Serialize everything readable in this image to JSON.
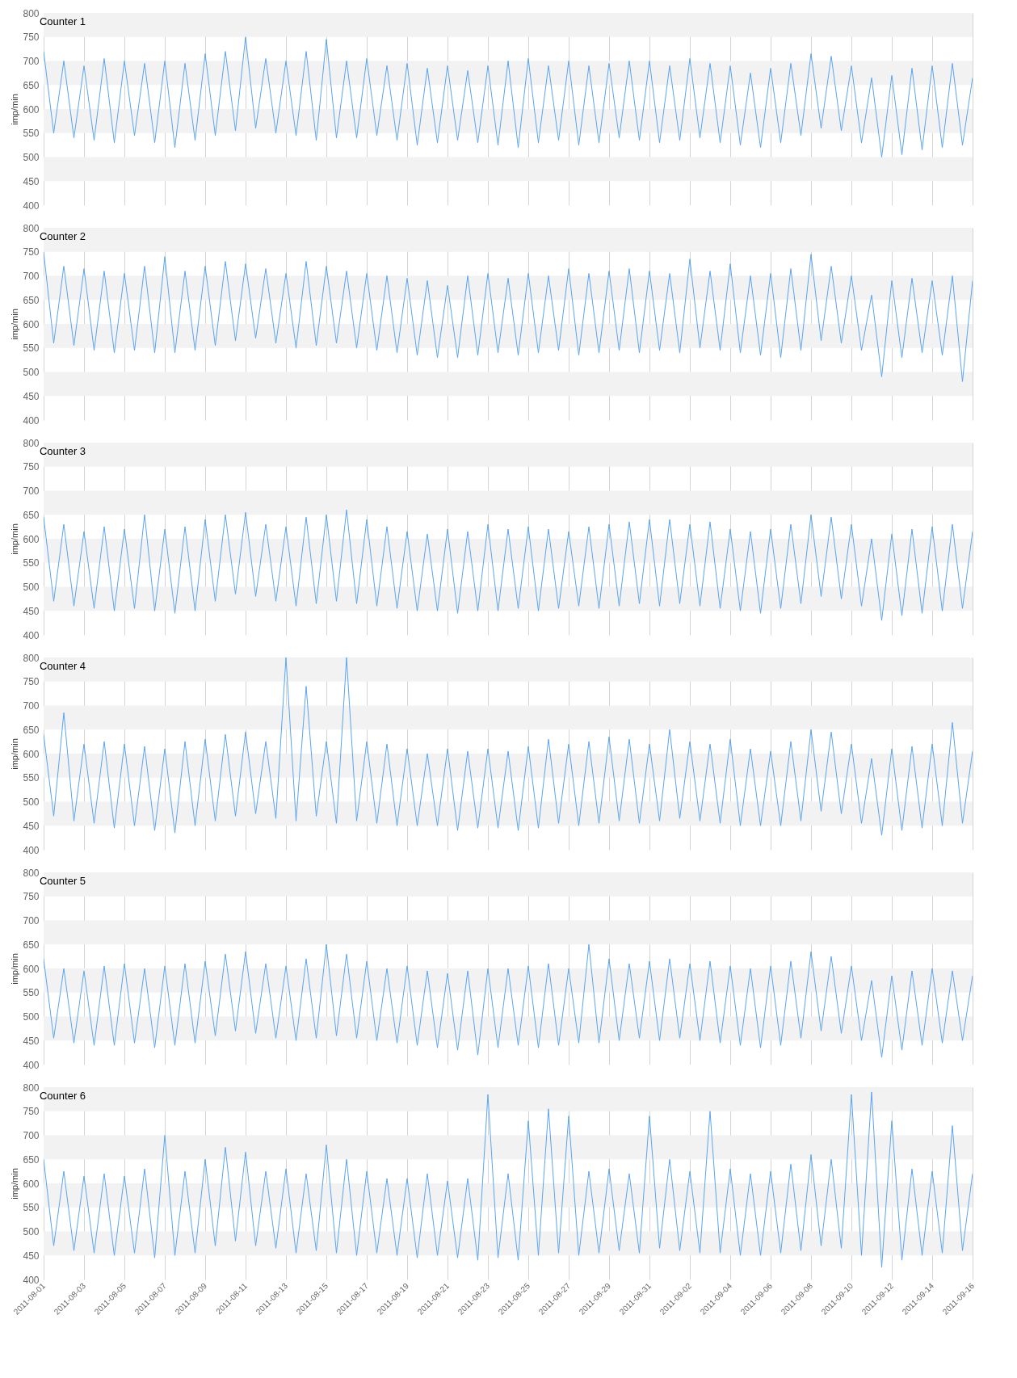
{
  "chart_data": [
    {
      "type": "line",
      "title": "Counter 1",
      "ylabel": "imp/min",
      "color": "#5aa5f0",
      "ylim": [
        400,
        800
      ],
      "yticks": [
        400,
        450,
        500,
        550,
        600,
        650,
        700,
        750,
        800
      ],
      "xlim": [
        "2011-08-01",
        "2011-09-16"
      ],
      "xticks": [
        "2011-08-01",
        "2011-08-03",
        "2011-08-05",
        "2011-08-07",
        "2011-08-09",
        "2011-08-11",
        "2011-08-13",
        "2011-08-15",
        "2011-08-17",
        "2011-08-19",
        "2011-08-21",
        "2011-08-23",
        "2011-08-25",
        "2011-08-27",
        "2011-08-29",
        "2011-08-31",
        "2011-09-02",
        "2011-09-04",
        "2011-09-06",
        "2011-09-08",
        "2011-09-10",
        "2011-09-12",
        "2011-09-14",
        "2011-09-16"
      ],
      "grid": "x",
      "tick_labels": "y",
      "bands": [
        {
          "axis": "y",
          "from": 450,
          "to": 500,
          "color": "#f2f2f2"
        },
        {
          "axis": "y",
          "from": 550,
          "to": 600,
          "color": "#f2f2f2"
        },
        {
          "axis": "y",
          "from": 650,
          "to": 700,
          "color": "#f2f2f2"
        },
        {
          "axis": "y",
          "from": 750,
          "to": 800,
          "color": "#f2f2f2"
        }
      ],
      "x": [
        "2011-08-01T00:00",
        "2011-08-01T12:00",
        "2011-08-02T00:00",
        "2011-08-02T12:00",
        "2011-08-03T00:00",
        "2011-08-03T12:00",
        "2011-08-04T00:00",
        "2011-08-04T12:00",
        "2011-08-05T00:00",
        "2011-08-05T12:00",
        "2011-08-06T00:00",
        "2011-08-06T12:00",
        "2011-08-07T00:00",
        "2011-08-07T12:00",
        "2011-08-08T00:00",
        "2011-08-08T12:00",
        "2011-08-09T00:00",
        "2011-08-09T12:00",
        "2011-08-10T00:00",
        "2011-08-10T12:00",
        "2011-08-11T00:00",
        "2011-08-11T12:00",
        "2011-08-12T00:00",
        "2011-08-12T12:00",
        "2011-08-13T00:00",
        "2011-08-13T12:00",
        "2011-08-14T00:00",
        "2011-08-14T12:00",
        "2011-08-15T00:00",
        "2011-08-15T12:00",
        "2011-08-16T00:00",
        "2011-08-16T12:00",
        "2011-08-17T00:00",
        "2011-08-17T12:00",
        "2011-08-18T00:00",
        "2011-08-18T12:00",
        "2011-08-19T00:00",
        "2011-08-19T12:00",
        "2011-08-20T00:00",
        "2011-08-20T12:00",
        "2011-08-21T00:00",
        "2011-08-21T12:00",
        "2011-08-22T00:00",
        "2011-08-22T12:00",
        "2011-08-23T00:00",
        "2011-08-23T12:00",
        "2011-08-24T00:00",
        "2011-08-24T12:00",
        "2011-08-25T00:00",
        "2011-08-25T12:00",
        "2011-08-26T00:00",
        "2011-08-26T12:00",
        "2011-08-27T00:00",
        "2011-08-27T12:00",
        "2011-08-28T00:00",
        "2011-08-28T12:00",
        "2011-08-29T00:00",
        "2011-08-29T12:00",
        "2011-08-30T00:00",
        "2011-08-30T12:00",
        "2011-08-31T00:00",
        "2011-08-31T12:00",
        "2011-09-01T00:00",
        "2011-09-01T12:00",
        "2011-09-02T00:00",
        "2011-09-02T12:00",
        "2011-09-03T00:00",
        "2011-09-03T12:00",
        "2011-09-04T00:00",
        "2011-09-04T12:00",
        "2011-09-05T00:00",
        "2011-09-05T12:00",
        "2011-09-06T00:00",
        "2011-09-06T12:00",
        "2011-09-07T00:00",
        "2011-09-07T12:00",
        "2011-09-08T00:00",
        "2011-09-08T12:00",
        "2011-09-09T00:00",
        "2011-09-09T12:00",
        "2011-09-10T00:00",
        "2011-09-10T12:00",
        "2011-09-11T00:00",
        "2011-09-11T12:00",
        "2011-09-12T00:00",
        "2011-09-12T12:00",
        "2011-09-13T00:00",
        "2011-09-13T12:00",
        "2011-09-14T00:00",
        "2011-09-14T12:00",
        "2011-09-15T00:00",
        "2011-09-15T12:00",
        "2011-09-16T00:00"
      ],
      "values": [
        720,
        550,
        700,
        540,
        690,
        535,
        705,
        530,
        700,
        545,
        695,
        530,
        700,
        520,
        695,
        535,
        715,
        545,
        720,
        555,
        750,
        560,
        705,
        550,
        700,
        545,
        720,
        535,
        745,
        540,
        700,
        540,
        705,
        545,
        690,
        535,
        695,
        525,
        685,
        530,
        690,
        535,
        680,
        530,
        690,
        525,
        700,
        520,
        705,
        530,
        690,
        535,
        700,
        525,
        690,
        530,
        695,
        540,
        700,
        535,
        700,
        530,
        690,
        535,
        705,
        540,
        695,
        530,
        690,
        525,
        675,
        520,
        685,
        530,
        695,
        545,
        715,
        560,
        710,
        555,
        690,
        530,
        665,
        500,
        670,
        505,
        685,
        515,
        690,
        520,
        695,
        525,
        665
      ]
    },
    {
      "type": "line",
      "title": "Counter 2",
      "ylabel": "imp/min",
      "color": "#5aa5f0",
      "ylim": [
        400,
        800
      ],
      "yticks": [
        400,
        450,
        500,
        550,
        600,
        650,
        700,
        750,
        800
      ],
      "xlim": [
        "2011-08-01",
        "2011-09-16"
      ],
      "xticks": [
        "2011-08-01",
        "2011-08-03",
        "2011-08-05",
        "2011-08-07",
        "2011-08-09",
        "2011-08-11",
        "2011-08-13",
        "2011-08-15",
        "2011-08-17",
        "2011-08-19",
        "2011-08-21",
        "2011-08-23",
        "2011-08-25",
        "2011-08-27",
        "2011-08-29",
        "2011-08-31",
        "2011-09-02",
        "2011-09-04",
        "2011-09-06",
        "2011-09-08",
        "2011-09-10",
        "2011-09-12",
        "2011-09-14",
        "2011-09-16"
      ],
      "grid": "x",
      "tick_labels": "y",
      "bands": [
        {
          "axis": "y",
          "from": 450,
          "to": 500,
          "color": "#f2f2f2"
        },
        {
          "axis": "y",
          "from": 550,
          "to": 600,
          "color": "#f2f2f2"
        },
        {
          "axis": "y",
          "from": 650,
          "to": 700,
          "color": "#f2f2f2"
        },
        {
          "axis": "y",
          "from": 750,
          "to": 800,
          "color": "#f2f2f2"
        }
      ],
      "x": [
        "2011-08-01T00:00",
        "2011-08-01T12:00",
        "2011-08-02T00:00",
        "2011-08-02T12:00",
        "2011-08-03T00:00",
        "2011-08-03T12:00",
        "2011-08-04T00:00",
        "2011-08-04T12:00",
        "2011-08-05T00:00",
        "2011-08-05T12:00",
        "2011-08-06T00:00",
        "2011-08-06T12:00",
        "2011-08-07T00:00",
        "2011-08-07T12:00",
        "2011-08-08T00:00",
        "2011-08-08T12:00",
        "2011-08-09T00:00",
        "2011-08-09T12:00",
        "2011-08-10T00:00",
        "2011-08-10T12:00",
        "2011-08-11T00:00",
        "2011-08-11T12:00",
        "2011-08-12T00:00",
        "2011-08-12T12:00",
        "2011-08-13T00:00",
        "2011-08-13T12:00",
        "2011-08-14T00:00",
        "2011-08-14T12:00",
        "2011-08-15T00:00",
        "2011-08-15T12:00",
        "2011-08-16T00:00",
        "2011-08-16T12:00",
        "2011-08-17T00:00",
        "2011-08-17T12:00",
        "2011-08-18T00:00",
        "2011-08-18T12:00",
        "2011-08-19T00:00",
        "2011-08-19T12:00",
        "2011-08-20T00:00",
        "2011-08-20T12:00",
        "2011-08-21T00:00",
        "2011-08-21T12:00",
        "2011-08-22T00:00",
        "2011-08-22T12:00",
        "2011-08-23T00:00",
        "2011-08-23T12:00",
        "2011-08-24T00:00",
        "2011-08-24T12:00",
        "2011-08-25T00:00",
        "2011-08-25T12:00",
        "2011-08-26T00:00",
        "2011-08-26T12:00",
        "2011-08-27T00:00",
        "2011-08-27T12:00",
        "2011-08-28T00:00",
        "2011-08-28T12:00",
        "2011-08-29T00:00",
        "2011-08-29T12:00",
        "2011-08-30T00:00",
        "2011-08-30T12:00",
        "2011-08-31T00:00",
        "2011-08-31T12:00",
        "2011-09-01T00:00",
        "2011-09-01T12:00",
        "2011-09-02T00:00",
        "2011-09-02T12:00",
        "2011-09-03T00:00",
        "2011-09-03T12:00",
        "2011-09-04T00:00",
        "2011-09-04T12:00",
        "2011-09-05T00:00",
        "2011-09-05T12:00",
        "2011-09-06T00:00",
        "2011-09-06T12:00",
        "2011-09-07T00:00",
        "2011-09-07T12:00",
        "2011-09-08T00:00",
        "2011-09-08T12:00",
        "2011-09-09T00:00",
        "2011-09-09T12:00",
        "2011-09-10T00:00",
        "2011-09-10T12:00",
        "2011-09-11T00:00",
        "2011-09-11T12:00",
        "2011-09-12T00:00",
        "2011-09-12T12:00",
        "2011-09-13T00:00",
        "2011-09-13T12:00",
        "2011-09-14T00:00",
        "2011-09-14T12:00",
        "2011-09-15T00:00",
        "2011-09-15T12:00",
        "2011-09-16T00:00"
      ],
      "values": [
        750,
        560,
        720,
        555,
        715,
        545,
        710,
        540,
        705,
        545,
        720,
        540,
        740,
        540,
        710,
        545,
        720,
        555,
        730,
        565,
        725,
        570,
        715,
        560,
        705,
        550,
        730,
        555,
        720,
        560,
        710,
        550,
        705,
        545,
        700,
        540,
        695,
        535,
        690,
        530,
        680,
        530,
        700,
        535,
        705,
        540,
        695,
        535,
        705,
        540,
        700,
        545,
        715,
        535,
        705,
        540,
        710,
        545,
        715,
        540,
        710,
        545,
        705,
        540,
        735,
        550,
        710,
        545,
        725,
        540,
        700,
        535,
        705,
        530,
        715,
        545,
        745,
        565,
        720,
        560,
        700,
        545,
        660,
        490,
        690,
        530,
        695,
        540,
        690,
        535,
        700,
        480,
        690
      ]
    },
    {
      "type": "line",
      "title": "Counter 3",
      "ylabel": "imp/min",
      "color": "#5aa5f0",
      "ylim": [
        400,
        800
      ],
      "yticks": [
        400,
        450,
        500,
        550,
        600,
        650,
        700,
        750,
        800
      ],
      "xlim": [
        "2011-08-01",
        "2011-09-16"
      ],
      "xticks": [
        "2011-08-01",
        "2011-08-03",
        "2011-08-05",
        "2011-08-07",
        "2011-08-09",
        "2011-08-11",
        "2011-08-13",
        "2011-08-15",
        "2011-08-17",
        "2011-08-19",
        "2011-08-21",
        "2011-08-23",
        "2011-08-25",
        "2011-08-27",
        "2011-08-29",
        "2011-08-31",
        "2011-09-02",
        "2011-09-04",
        "2011-09-06",
        "2011-09-08",
        "2011-09-10",
        "2011-09-12",
        "2011-09-14",
        "2011-09-16"
      ],
      "grid": "x",
      "tick_labels": "y",
      "bands": [
        {
          "axis": "y",
          "from": 450,
          "to": 500,
          "color": "#f2f2f2"
        },
        {
          "axis": "y",
          "from": 550,
          "to": 600,
          "color": "#f2f2f2"
        },
        {
          "axis": "y",
          "from": 650,
          "to": 700,
          "color": "#f2f2f2"
        },
        {
          "axis": "y",
          "from": 750,
          "to": 800,
          "color": "#f2f2f2"
        }
      ],
      "x": [
        "2011-08-01T00:00",
        "2011-08-01T12:00",
        "2011-08-02T00:00",
        "2011-08-02T12:00",
        "2011-08-03T00:00",
        "2011-08-03T12:00",
        "2011-08-04T00:00",
        "2011-08-04T12:00",
        "2011-08-05T00:00",
        "2011-08-05T12:00",
        "2011-08-06T00:00",
        "2011-08-06T12:00",
        "2011-08-07T00:00",
        "2011-08-07T12:00",
        "2011-08-08T00:00",
        "2011-08-08T12:00",
        "2011-08-09T00:00",
        "2011-08-09T12:00",
        "2011-08-10T00:00",
        "2011-08-10T12:00",
        "2011-08-11T00:00",
        "2011-08-11T12:00",
        "2011-08-12T00:00",
        "2011-08-12T12:00",
        "2011-08-13T00:00",
        "2011-08-13T12:00",
        "2011-08-14T00:00",
        "2011-08-14T12:00",
        "2011-08-15T00:00",
        "2011-08-15T12:00",
        "2011-08-16T00:00",
        "2011-08-16T12:00",
        "2011-08-17T00:00",
        "2011-08-17T12:00",
        "2011-08-18T00:00",
        "2011-08-18T12:00",
        "2011-08-19T00:00",
        "2011-08-19T12:00",
        "2011-08-20T00:00",
        "2011-08-20T12:00",
        "2011-08-21T00:00",
        "2011-08-21T12:00",
        "2011-08-22T00:00",
        "2011-08-22T12:00",
        "2011-08-23T00:00",
        "2011-08-23T12:00",
        "2011-08-24T00:00",
        "2011-08-24T12:00",
        "2011-08-25T00:00",
        "2011-08-25T12:00",
        "2011-08-26T00:00",
        "2011-08-26T12:00",
        "2011-08-27T00:00",
        "2011-08-27T12:00",
        "2011-08-28T00:00",
        "2011-08-28T12:00",
        "2011-08-29T00:00",
        "2011-08-29T12:00",
        "2011-08-30T00:00",
        "2011-08-30T12:00",
        "2011-08-31T00:00",
        "2011-08-31T12:00",
        "2011-09-01T00:00",
        "2011-09-01T12:00",
        "2011-09-02T00:00",
        "2011-09-02T12:00",
        "2011-09-03T00:00",
        "2011-09-03T12:00",
        "2011-09-04T00:00",
        "2011-09-04T12:00",
        "2011-09-05T00:00",
        "2011-09-05T12:00",
        "2011-09-06T00:00",
        "2011-09-06T12:00",
        "2011-09-07T00:00",
        "2011-09-07T12:00",
        "2011-09-08T00:00",
        "2011-09-08T12:00",
        "2011-09-09T00:00",
        "2011-09-09T12:00",
        "2011-09-10T00:00",
        "2011-09-10T12:00",
        "2011-09-11T00:00",
        "2011-09-11T12:00",
        "2011-09-12T00:00",
        "2011-09-12T12:00",
        "2011-09-13T00:00",
        "2011-09-13T12:00",
        "2011-09-14T00:00",
        "2011-09-14T12:00",
        "2011-09-15T00:00",
        "2011-09-15T12:00",
        "2011-09-16T00:00"
      ],
      "values": [
        645,
        470,
        630,
        460,
        615,
        455,
        625,
        450,
        620,
        455,
        650,
        450,
        620,
        445,
        625,
        450,
        640,
        470,
        650,
        485,
        655,
        480,
        630,
        470,
        625,
        460,
        645,
        465,
        650,
        470,
        660,
        465,
        640,
        460,
        625,
        455,
        615,
        450,
        610,
        450,
        620,
        445,
        615,
        450,
        630,
        450,
        620,
        455,
        625,
        450,
        620,
        455,
        615,
        460,
        625,
        455,
        630,
        460,
        635,
        465,
        640,
        460,
        640,
        465,
        630,
        460,
        635,
        455,
        620,
        450,
        615,
        445,
        620,
        455,
        630,
        465,
        650,
        480,
        645,
        475,
        630,
        460,
        600,
        430,
        610,
        440,
        620,
        445,
        625,
        450,
        630,
        455,
        615
      ]
    },
    {
      "type": "line",
      "title": "Counter 4",
      "ylabel": "imp/min",
      "color": "#5aa5f0",
      "ylim": [
        400,
        800
      ],
      "yticks": [
        400,
        450,
        500,
        550,
        600,
        650,
        700,
        750,
        800
      ],
      "xlim": [
        "2011-08-01",
        "2011-09-16"
      ],
      "xticks": [
        "2011-08-01",
        "2011-08-03",
        "2011-08-05",
        "2011-08-07",
        "2011-08-09",
        "2011-08-11",
        "2011-08-13",
        "2011-08-15",
        "2011-08-17",
        "2011-08-19",
        "2011-08-21",
        "2011-08-23",
        "2011-08-25",
        "2011-08-27",
        "2011-08-29",
        "2011-08-31",
        "2011-09-02",
        "2011-09-04",
        "2011-09-06",
        "2011-09-08",
        "2011-09-10",
        "2011-09-12",
        "2011-09-14",
        "2011-09-16"
      ],
      "grid": "x",
      "tick_labels": "y",
      "bands": [
        {
          "axis": "y",
          "from": 450,
          "to": 500,
          "color": "#f2f2f2"
        },
        {
          "axis": "y",
          "from": 550,
          "to": 600,
          "color": "#f2f2f2"
        },
        {
          "axis": "y",
          "from": 650,
          "to": 700,
          "color": "#f2f2f2"
        },
        {
          "axis": "y",
          "from": 750,
          "to": 800,
          "color": "#f2f2f2"
        }
      ],
      "x": [
        "2011-08-01T00:00",
        "2011-08-01T12:00",
        "2011-08-02T00:00",
        "2011-08-02T12:00",
        "2011-08-03T00:00",
        "2011-08-03T12:00",
        "2011-08-04T00:00",
        "2011-08-04T12:00",
        "2011-08-05T00:00",
        "2011-08-05T12:00",
        "2011-08-06T00:00",
        "2011-08-06T12:00",
        "2011-08-07T00:00",
        "2011-08-07T12:00",
        "2011-08-08T00:00",
        "2011-08-08T12:00",
        "2011-08-09T00:00",
        "2011-08-09T12:00",
        "2011-08-10T00:00",
        "2011-08-10T12:00",
        "2011-08-11T00:00",
        "2011-08-11T12:00",
        "2011-08-12T00:00",
        "2011-08-12T12:00",
        "2011-08-13T00:00",
        "2011-08-13T12:00",
        "2011-08-14T00:00",
        "2011-08-14T12:00",
        "2011-08-15T00:00",
        "2011-08-15T12:00",
        "2011-08-16T00:00",
        "2011-08-16T12:00",
        "2011-08-17T00:00",
        "2011-08-17T12:00",
        "2011-08-18T00:00",
        "2011-08-18T12:00",
        "2011-08-19T00:00",
        "2011-08-19T12:00",
        "2011-08-20T00:00",
        "2011-08-20T12:00",
        "2011-08-21T00:00",
        "2011-08-21T12:00",
        "2011-08-22T00:00",
        "2011-08-22T12:00",
        "2011-08-23T00:00",
        "2011-08-23T12:00",
        "2011-08-24T00:00",
        "2011-08-24T12:00",
        "2011-08-25T00:00",
        "2011-08-25T12:00",
        "2011-08-26T00:00",
        "2011-08-26T12:00",
        "2011-08-27T00:00",
        "2011-08-27T12:00",
        "2011-08-28T00:00",
        "2011-08-28T12:00",
        "2011-08-29T00:00",
        "2011-08-29T12:00",
        "2011-08-30T00:00",
        "2011-08-30T12:00",
        "2011-08-31T00:00",
        "2011-08-31T12:00",
        "2011-09-01T00:00",
        "2011-09-01T12:00",
        "2011-09-02T00:00",
        "2011-09-02T12:00",
        "2011-09-03T00:00",
        "2011-09-03T12:00",
        "2011-09-04T00:00",
        "2011-09-04T12:00",
        "2011-09-05T00:00",
        "2011-09-05T12:00",
        "2011-09-06T00:00",
        "2011-09-06T12:00",
        "2011-09-07T00:00",
        "2011-09-07T12:00",
        "2011-09-08T00:00",
        "2011-09-08T12:00",
        "2011-09-09T00:00",
        "2011-09-09T12:00",
        "2011-09-10T00:00",
        "2011-09-10T12:00",
        "2011-09-11T00:00",
        "2011-09-11T12:00",
        "2011-09-12T00:00",
        "2011-09-12T12:00",
        "2011-09-13T00:00",
        "2011-09-13T12:00",
        "2011-09-14T00:00",
        "2011-09-14T12:00",
        "2011-09-15T00:00",
        "2011-09-15T12:00",
        "2011-09-16T00:00"
      ],
      "values": [
        640,
        470,
        685,
        460,
        620,
        455,
        625,
        445,
        620,
        450,
        615,
        440,
        610,
        435,
        625,
        450,
        630,
        460,
        640,
        470,
        645,
        475,
        625,
        465,
        800,
        460,
        740,
        470,
        625,
        455,
        800,
        460,
        625,
        455,
        620,
        450,
        610,
        450,
        600,
        450,
        610,
        440,
        605,
        445,
        610,
        445,
        605,
        440,
        615,
        445,
        630,
        455,
        620,
        450,
        625,
        455,
        635,
        460,
        630,
        455,
        620,
        460,
        650,
        465,
        625,
        460,
        620,
        455,
        630,
        450,
        610,
        450,
        605,
        450,
        625,
        460,
        650,
        480,
        645,
        475,
        620,
        455,
        590,
        430,
        610,
        440,
        615,
        445,
        620,
        450,
        665,
        455,
        605
      ]
    },
    {
      "type": "line",
      "title": "Counter 5",
      "ylabel": "imp/min",
      "color": "#5aa5f0",
      "ylim": [
        400,
        800
      ],
      "yticks": [
        400,
        450,
        500,
        550,
        600,
        650,
        700,
        750,
        800
      ],
      "xlim": [
        "2011-08-01",
        "2011-09-16"
      ],
      "xticks": [
        "2011-08-01",
        "2011-08-03",
        "2011-08-05",
        "2011-08-07",
        "2011-08-09",
        "2011-08-11",
        "2011-08-13",
        "2011-08-15",
        "2011-08-17",
        "2011-08-19",
        "2011-08-21",
        "2011-08-23",
        "2011-08-25",
        "2011-08-27",
        "2011-08-29",
        "2011-08-31",
        "2011-09-02",
        "2011-09-04",
        "2011-09-06",
        "2011-09-08",
        "2011-09-10",
        "2011-09-12",
        "2011-09-14",
        "2011-09-16"
      ],
      "grid": "x",
      "tick_labels": "y",
      "bands": [
        {
          "axis": "y",
          "from": 450,
          "to": 500,
          "color": "#f2f2f2"
        },
        {
          "axis": "y",
          "from": 550,
          "to": 600,
          "color": "#f2f2f2"
        },
        {
          "axis": "y",
          "from": 650,
          "to": 700,
          "color": "#f2f2f2"
        },
        {
          "axis": "y",
          "from": 750,
          "to": 800,
          "color": "#f2f2f2"
        }
      ],
      "x": [
        "2011-08-01T00:00",
        "2011-08-01T12:00",
        "2011-08-02T00:00",
        "2011-08-02T12:00",
        "2011-08-03T00:00",
        "2011-08-03T12:00",
        "2011-08-04T00:00",
        "2011-08-04T12:00",
        "2011-08-05T00:00",
        "2011-08-05T12:00",
        "2011-08-06T00:00",
        "2011-08-06T12:00",
        "2011-08-07T00:00",
        "2011-08-07T12:00",
        "2011-08-08T00:00",
        "2011-08-08T12:00",
        "2011-08-09T00:00",
        "2011-08-09T12:00",
        "2011-08-10T00:00",
        "2011-08-10T12:00",
        "2011-08-11T00:00",
        "2011-08-11T12:00",
        "2011-08-12T00:00",
        "2011-08-12T12:00",
        "2011-08-13T00:00",
        "2011-08-13T12:00",
        "2011-08-14T00:00",
        "2011-08-14T12:00",
        "2011-08-15T00:00",
        "2011-08-15T12:00",
        "2011-08-16T00:00",
        "2011-08-16T12:00",
        "2011-08-17T00:00",
        "2011-08-17T12:00",
        "2011-08-18T00:00",
        "2011-08-18T12:00",
        "2011-08-19T00:00",
        "2011-08-19T12:00",
        "2011-08-20T00:00",
        "2011-08-20T12:00",
        "2011-08-21T00:00",
        "2011-08-21T12:00",
        "2011-08-22T00:00",
        "2011-08-22T12:00",
        "2011-08-23T00:00",
        "2011-08-23T12:00",
        "2011-08-24T00:00",
        "2011-08-24T12:00",
        "2011-08-25T00:00",
        "2011-08-25T12:00",
        "2011-08-26T00:00",
        "2011-08-26T12:00",
        "2011-08-27T00:00",
        "2011-08-27T12:00",
        "2011-08-28T00:00",
        "2011-08-28T12:00",
        "2011-08-29T00:00",
        "2011-08-29T12:00",
        "2011-08-30T00:00",
        "2011-08-30T12:00",
        "2011-08-31T00:00",
        "2011-08-31T12:00",
        "2011-09-01T00:00",
        "2011-09-01T12:00",
        "2011-09-02T00:00",
        "2011-09-02T12:00",
        "2011-09-03T00:00",
        "2011-09-03T12:00",
        "2011-09-04T00:00",
        "2011-09-04T12:00",
        "2011-09-05T00:00",
        "2011-09-05T12:00",
        "2011-09-06T00:00",
        "2011-09-06T12:00",
        "2011-09-07T00:00",
        "2011-09-07T12:00",
        "2011-09-08T00:00",
        "2011-09-08T12:00",
        "2011-09-09T00:00",
        "2011-09-09T12:00",
        "2011-09-10T00:00",
        "2011-09-10T12:00",
        "2011-09-11T00:00",
        "2011-09-11T12:00",
        "2011-09-12T00:00",
        "2011-09-12T12:00",
        "2011-09-13T00:00",
        "2011-09-13T12:00",
        "2011-09-14T00:00",
        "2011-09-14T12:00",
        "2011-09-15T00:00",
        "2011-09-15T12:00",
        "2011-09-16T00:00"
      ],
      "values": [
        620,
        455,
        600,
        445,
        595,
        440,
        605,
        440,
        610,
        445,
        600,
        435,
        605,
        440,
        610,
        445,
        615,
        460,
        630,
        470,
        635,
        465,
        610,
        455,
        605,
        450,
        620,
        455,
        650,
        460,
        630,
        455,
        615,
        450,
        600,
        445,
        605,
        440,
        595,
        435,
        590,
        430,
        595,
        420,
        600,
        435,
        600,
        440,
        605,
        435,
        610,
        440,
        600,
        445,
        650,
        445,
        620,
        450,
        610,
        455,
        615,
        450,
        620,
        455,
        610,
        450,
        615,
        445,
        605,
        440,
        600,
        435,
        605,
        440,
        615,
        455,
        635,
        470,
        625,
        465,
        605,
        450,
        575,
        415,
        585,
        430,
        595,
        440,
        600,
        445,
        595,
        450,
        585
      ]
    },
    {
      "type": "line",
      "title": "Counter 6",
      "ylabel": "imp/min",
      "color": "#5aa5f0",
      "ylim": [
        400,
        800
      ],
      "yticks": [
        400,
        450,
        500,
        550,
        600,
        650,
        700,
        750,
        800
      ],
      "xlim": [
        "2011-08-01",
        "2011-09-16"
      ],
      "xticks": [
        "2011-08-01",
        "2011-08-03",
        "2011-08-05",
        "2011-08-07",
        "2011-08-09",
        "2011-08-11",
        "2011-08-13",
        "2011-08-15",
        "2011-08-17",
        "2011-08-19",
        "2011-08-21",
        "2011-08-23",
        "2011-08-25",
        "2011-08-27",
        "2011-08-29",
        "2011-08-31",
        "2011-09-02",
        "2011-09-04",
        "2011-09-06",
        "2011-09-08",
        "2011-09-10",
        "2011-09-12",
        "2011-09-14",
        "2011-09-16"
      ],
      "grid": "x",
      "bands": [
        {
          "axis": "y",
          "from": 450,
          "to": 500,
          "color": "#f2f2f2"
        },
        {
          "axis": "y",
          "from": 550,
          "to": 600,
          "color": "#f2f2f2"
        },
        {
          "axis": "y",
          "from": 650,
          "to": 700,
          "color": "#f2f2f2"
        },
        {
          "axis": "y",
          "from": 750,
          "to": 800,
          "color": "#f2f2f2"
        }
      ],
      "x": [
        "2011-08-01T00:00",
        "2011-08-01T12:00",
        "2011-08-02T00:00",
        "2011-08-02T12:00",
        "2011-08-03T00:00",
        "2011-08-03T12:00",
        "2011-08-04T00:00",
        "2011-08-04T12:00",
        "2011-08-05T00:00",
        "2011-08-05T12:00",
        "2011-08-06T00:00",
        "2011-08-06T12:00",
        "2011-08-07T00:00",
        "2011-08-07T12:00",
        "2011-08-08T00:00",
        "2011-08-08T12:00",
        "2011-08-09T00:00",
        "2011-08-09T12:00",
        "2011-08-10T00:00",
        "2011-08-10T12:00",
        "2011-08-11T00:00",
        "2011-08-11T12:00",
        "2011-08-12T00:00",
        "2011-08-12T12:00",
        "2011-08-13T00:00",
        "2011-08-13T12:00",
        "2011-08-14T00:00",
        "2011-08-14T12:00",
        "2011-08-15T00:00",
        "2011-08-15T12:00",
        "2011-08-16T00:00",
        "2011-08-16T12:00",
        "2011-08-17T00:00",
        "2011-08-17T12:00",
        "2011-08-18T00:00",
        "2011-08-18T12:00",
        "2011-08-19T00:00",
        "2011-08-19T12:00",
        "2011-08-20T00:00",
        "2011-08-20T12:00",
        "2011-08-21T00:00",
        "2011-08-21T12:00",
        "2011-08-22T00:00",
        "2011-08-22T12:00",
        "2011-08-23T00:00",
        "2011-08-23T12:00",
        "2011-08-24T00:00",
        "2011-08-24T12:00",
        "2011-08-25T00:00",
        "2011-08-25T12:00",
        "2011-08-26T00:00",
        "2011-08-26T12:00",
        "2011-08-27T00:00",
        "2011-08-27T12:00",
        "2011-08-28T00:00",
        "2011-08-28T12:00",
        "2011-08-29T00:00",
        "2011-08-29T12:00",
        "2011-08-30T00:00",
        "2011-08-30T12:00",
        "2011-08-31T00:00",
        "2011-08-31T12:00",
        "2011-09-01T00:00",
        "2011-09-01T12:00",
        "2011-09-02T00:00",
        "2011-09-02T12:00",
        "2011-09-03T00:00",
        "2011-09-03T12:00",
        "2011-09-04T00:00",
        "2011-09-04T12:00",
        "2011-09-05T00:00",
        "2011-09-05T12:00",
        "2011-09-06T00:00",
        "2011-09-06T12:00",
        "2011-09-07T00:00",
        "2011-09-07T12:00",
        "2011-09-08T00:00",
        "2011-09-08T12:00",
        "2011-09-09T00:00",
        "2011-09-09T12:00",
        "2011-09-10T00:00",
        "2011-09-10T12:00",
        "2011-09-11T00:00",
        "2011-09-11T12:00",
        "2011-09-12T00:00",
        "2011-09-12T12:00",
        "2011-09-13T00:00",
        "2011-09-13T12:00",
        "2011-09-14T00:00",
        "2011-09-14T12:00",
        "2011-09-15T00:00",
        "2011-09-15T12:00",
        "2011-09-16T00:00"
      ],
      "values": [
        650,
        470,
        625,
        460,
        615,
        455,
        620,
        450,
        615,
        455,
        630,
        445,
        700,
        450,
        625,
        455,
        650,
        470,
        675,
        480,
        665,
        470,
        625,
        465,
        630,
        455,
        620,
        460,
        680,
        455,
        650,
        450,
        625,
        455,
        610,
        450,
        610,
        445,
        620,
        450,
        605,
        445,
        610,
        440,
        785,
        445,
        620,
        440,
        730,
        450,
        755,
        455,
        740,
        450,
        625,
        455,
        630,
        460,
        620,
        455,
        740,
        465,
        650,
        460,
        625,
        455,
        750,
        455,
        630,
        450,
        620,
        450,
        625,
        455,
        640,
        460,
        660,
        470,
        650,
        465,
        785,
        450,
        790,
        425,
        730,
        440,
        630,
        450,
        625,
        455,
        720,
        460,
        620
      ]
    }
  ]
}
